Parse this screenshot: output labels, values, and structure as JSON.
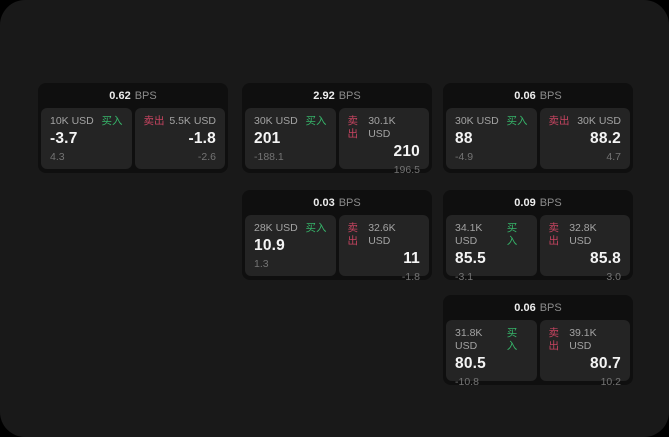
{
  "page": {
    "background": "#191919",
    "outer_background": "#000000"
  },
  "colors": {
    "buy_green": "#36b56a",
    "sell_red": "#c64460",
    "card_bg": "#0f0f0f",
    "tile_bg": "#242424"
  },
  "cards": [
    {
      "position": "row1-col1",
      "bps_value": "0.62",
      "bps_unit": "BPS",
      "buy": {
        "amount": "10K USD",
        "side_label": "买入",
        "value": "-3.7",
        "sub_value": "4.3"
      },
      "sell": {
        "amount": "5.5K USD",
        "side_label": "卖出",
        "value": "-1.8",
        "sub_value": "-2.6"
      }
    },
    {
      "position": "row1-col2",
      "bps_value": "2.92",
      "bps_unit": "BPS",
      "buy": {
        "amount": "30K USD",
        "side_label": "买入",
        "value": "201",
        "sub_value": "-188.1"
      },
      "sell": {
        "amount": "30.1K USD",
        "side_label": "卖出",
        "value": "210",
        "sub_value": "196.5"
      }
    },
    {
      "position": "row1-col3",
      "bps_value": "0.06",
      "bps_unit": "BPS",
      "buy": {
        "amount": "30K USD",
        "side_label": "买入",
        "value": "88",
        "sub_value": "-4.9"
      },
      "sell": {
        "amount": "30K USD",
        "side_label": "卖出",
        "value": "88.2",
        "sub_value": "4.7"
      }
    },
    {
      "position": "row2-col2",
      "bps_value": "0.03",
      "bps_unit": "BPS",
      "buy": {
        "amount": "28K USD",
        "side_label": "买入",
        "value": "10.9",
        "sub_value": "1.3"
      },
      "sell": {
        "amount": "32.6K USD",
        "side_label": "卖出",
        "value": "11",
        "sub_value": "-1.8"
      }
    },
    {
      "position": "row2-col3",
      "bps_value": "0.09",
      "bps_unit": "BPS",
      "buy": {
        "amount": "34.1K USD",
        "side_label": "买入",
        "value": "85.5",
        "sub_value": "-3.1"
      },
      "sell": {
        "amount": "32.8K USD",
        "side_label": "卖出",
        "value": "85.8",
        "sub_value": "3.0"
      }
    },
    {
      "position": "row3-col3",
      "bps_value": "0.06",
      "bps_unit": "BPS",
      "buy": {
        "amount": "31.8K USD",
        "side_label": "买入",
        "value": "80.5",
        "sub_value": "-10.8"
      },
      "sell": {
        "amount": "39.1K USD",
        "side_label": "卖出",
        "value": "80.7",
        "sub_value": "10.2"
      }
    }
  ]
}
